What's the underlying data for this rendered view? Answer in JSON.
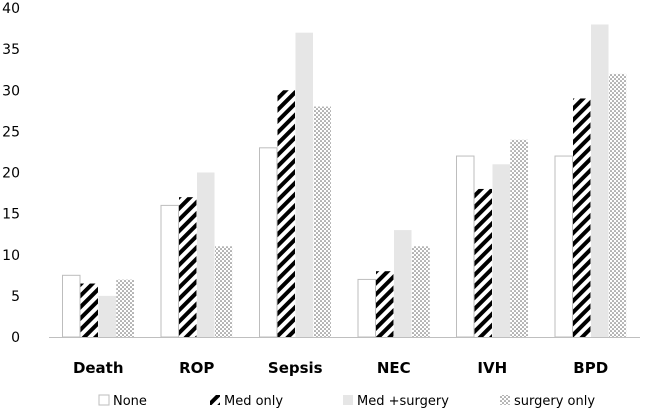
{
  "chart_data": {
    "type": "bar",
    "title": "",
    "xlabel": "",
    "ylabel": "",
    "ylim": [
      0,
      40
    ],
    "yticks": [
      0,
      5,
      10,
      15,
      20,
      25,
      30,
      35,
      40
    ],
    "grid": false,
    "legend_position": "bottom",
    "categories": [
      "Death",
      "ROP",
      "Sepsis",
      "NEC",
      "IVH",
      "BPD"
    ],
    "series": [
      {
        "name": "None",
        "pattern": "none",
        "values": [
          7.5,
          16,
          23,
          7,
          22,
          22
        ]
      },
      {
        "name": "Med only",
        "pattern": "diagonal",
        "values": [
          6.5,
          17,
          30,
          8,
          18,
          29
        ]
      },
      {
        "name": "Med +surgery",
        "pattern": "solid",
        "values": [
          5,
          20,
          37,
          13,
          21,
          38
        ]
      },
      {
        "name": "surgery only",
        "pattern": "dots",
        "values": [
          7,
          11,
          28,
          11,
          24,
          32
        ]
      }
    ],
    "colors": {
      "outline": "#bdbdbd",
      "hatch": "#000000",
      "solid": "#e6e6e6",
      "dots": "#555555"
    }
  }
}
